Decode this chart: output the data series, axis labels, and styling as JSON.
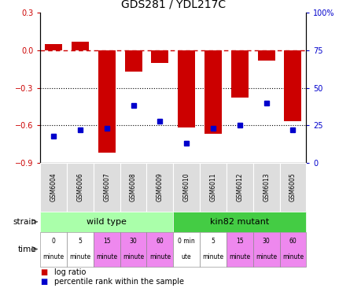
{
  "title": "GDS281 / YDL217C",
  "samples": [
    "GSM6004",
    "GSM6006",
    "GSM6007",
    "GSM6008",
    "GSM6009",
    "GSM6010",
    "GSM6011",
    "GSM6012",
    "GSM6013",
    "GSM6005"
  ],
  "log_ratio": [
    0.05,
    0.07,
    -0.82,
    -0.17,
    -0.1,
    -0.62,
    -0.67,
    -0.38,
    -0.08,
    -0.57
  ],
  "percentile": [
    18,
    22,
    23,
    38,
    28,
    13,
    23,
    25,
    40,
    22
  ],
  "ylim_left": [
    -0.9,
    0.3
  ],
  "ylim_right": [
    0,
    100
  ],
  "yticks_left": [
    -0.9,
    -0.6,
    -0.3,
    0.0,
    0.3
  ],
  "yticks_right": [
    0,
    25,
    50,
    75,
    100
  ],
  "ytick_right_labels": [
    "0",
    "25",
    "50",
    "75",
    "100%"
  ],
  "bar_color": "#cc0000",
  "dot_color": "#0000cc",
  "dashed_color": "#cc0000",
  "strain_wt_color": "#aaffaa",
  "strain_mut_color": "#44cc44",
  "time_colors": [
    "#ffffff",
    "#ffffff",
    "#ee88ee",
    "#ee88ee",
    "#ee88ee",
    "#ffffff",
    "#ffffff",
    "#ee88ee",
    "#ee88ee",
    "#ee88ee"
  ],
  "time_labels_top": [
    "0",
    "5",
    "15",
    "30",
    "60",
    "0 min",
    "5",
    "15",
    "30",
    "60"
  ],
  "time_labels_bot": [
    "minute",
    "minute",
    "minute",
    "minute",
    "minute",
    "ute",
    "minute",
    "minute",
    "minute",
    "minute"
  ],
  "wt_label": "wild type",
  "mut_label": "kin82 mutant",
  "strain_label": "strain",
  "time_label": "time",
  "legend_log": "log ratio",
  "legend_pct": "percentile rank within the sample",
  "gsm_bg": "#dddddd"
}
